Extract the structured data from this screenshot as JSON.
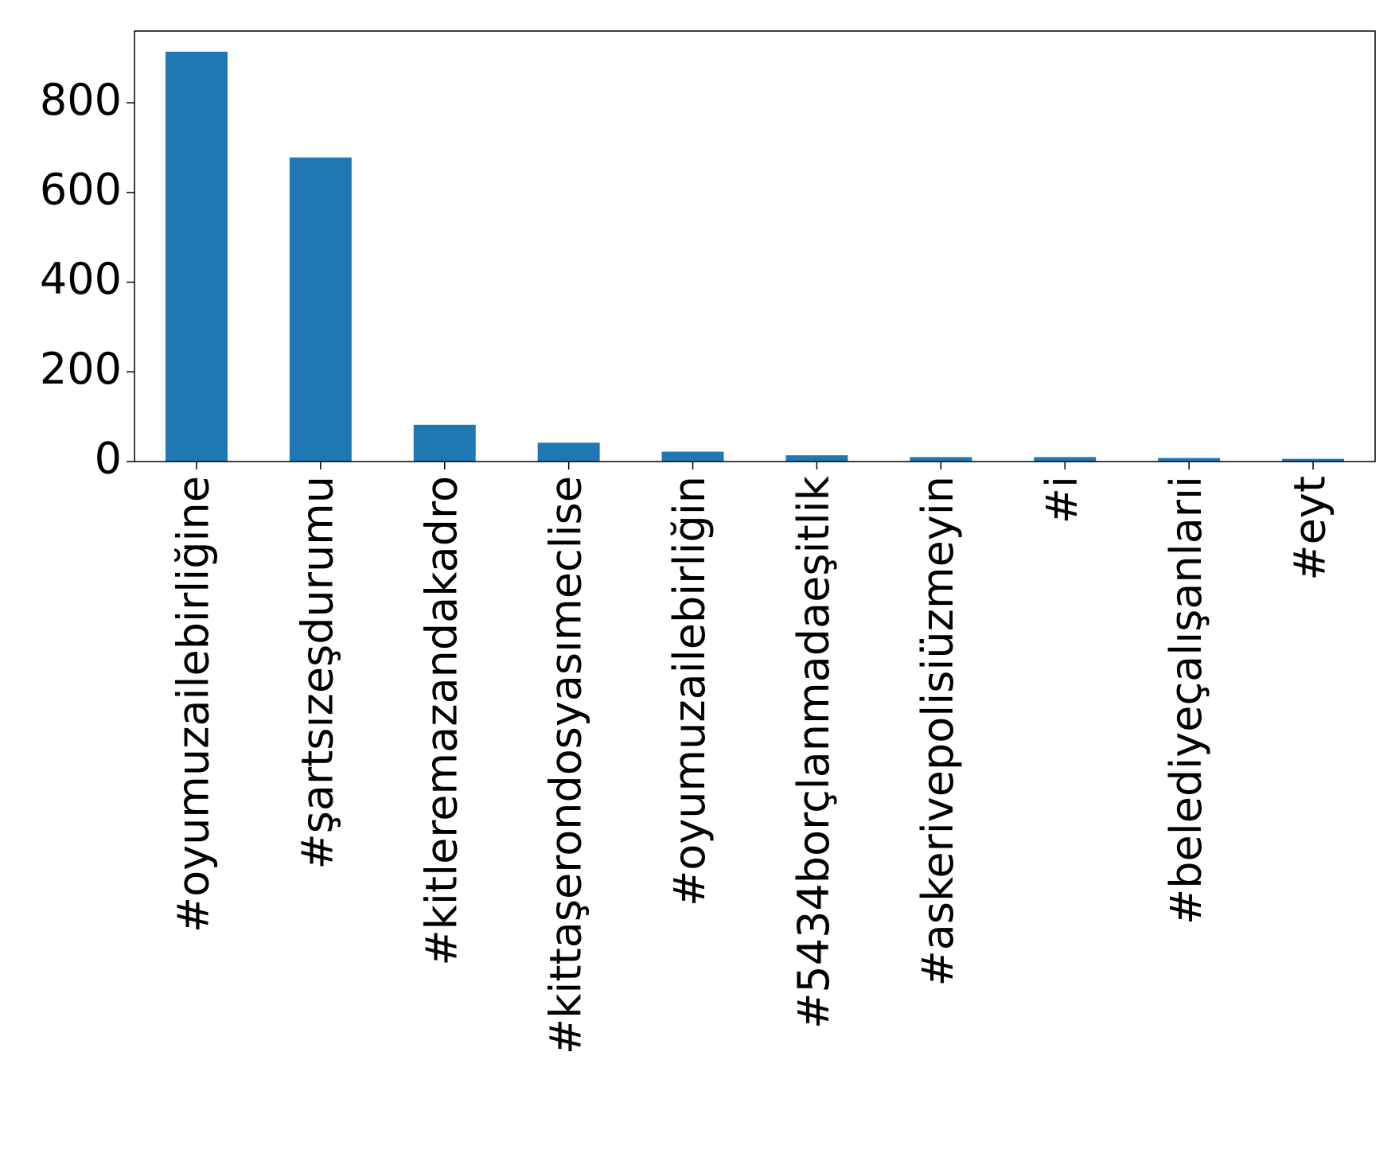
{
  "chart_data": {
    "type": "bar",
    "categories": [
      "#oyumuzailebirliğine",
      "#şartsızeşdurumu",
      "#kitleremazandakadro",
      "#kittaşerondosyasımeclise",
      "#oyumuzailebirliğin",
      "#5434borçlanmadaeşitlik",
      "#askerivepolisiüzmeyin",
      "#i",
      "#belediyeçalışanlarıi",
      "#eyt"
    ],
    "values": [
      914,
      678,
      82,
      42,
      22,
      14,
      10,
      10,
      8,
      6
    ],
    "color": "#1f77b4",
    "ylim": [
      0,
      960
    ],
    "yticks": [
      0,
      200,
      400,
      600,
      800
    ],
    "grid": false
  }
}
